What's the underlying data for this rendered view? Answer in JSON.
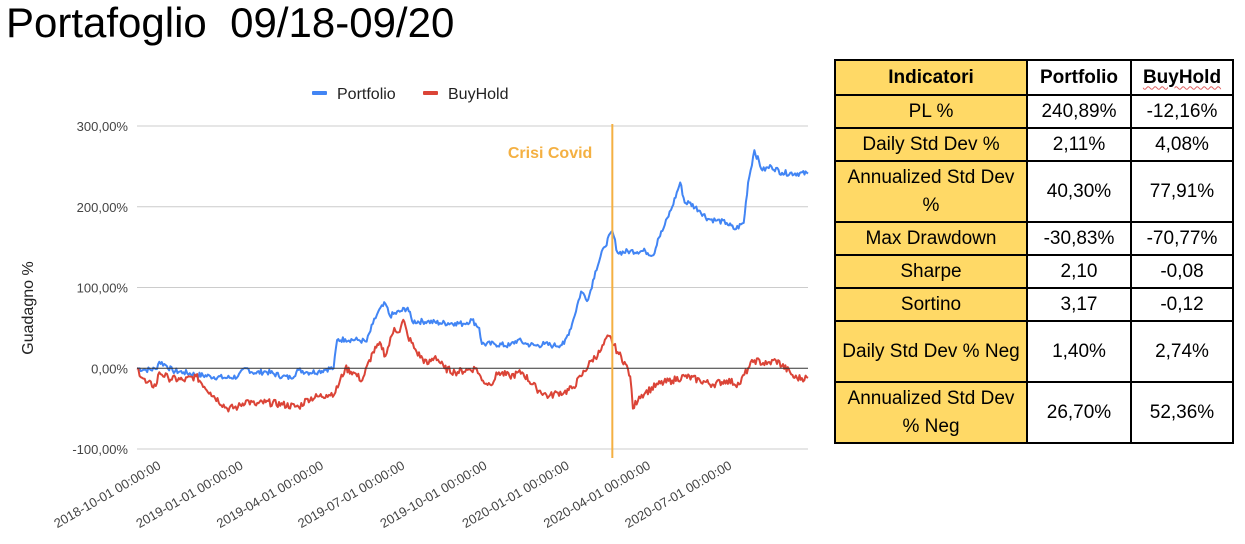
{
  "page": {
    "title": "Portafoglio  09/18-09/20"
  },
  "chart_data": {
    "type": "line",
    "title": "",
    "xlabel": "",
    "ylabel": "Guadagno %",
    "ylim": [
      -100,
      300
    ],
    "y_ticks": [
      -100,
      0,
      100,
      200,
      300
    ],
    "y_tick_labels": [
      "-100,00%",
      "0,00%",
      "100,00%",
      "200,00%",
      "300,00%"
    ],
    "x_range": [
      "2018-09-10",
      "2020-09-30"
    ],
    "x_ticks": [
      "2018-10-01",
      "2019-01-01",
      "2019-04-01",
      "2019-07-01",
      "2019-10-01",
      "2020-01-01",
      "2020-04-01",
      "2020-07-01"
    ],
    "x_tick_labels": [
      "2018-10-01 00:00:00",
      "2019-01-01 00:00:00",
      "2019-04-01 00:00:00",
      "2019-07-01 00:00:00",
      "2019-10-01 00:00:00",
      "2020-01-01 00:00:00",
      "2020-04-01 00:00:00",
      "2020-07-01 00:00:00"
    ],
    "legend_position": "top",
    "grid": true,
    "annotation": {
      "label": "Crisi Covid",
      "x": "2020-02-24",
      "color": "#f4b042"
    },
    "series": [
      {
        "name": "Portfolio",
        "color": "#4285f4",
        "points": [
          [
            "2018-09-10",
            0
          ],
          [
            "2018-09-20",
            -2
          ],
          [
            "2018-10-01",
            -1
          ],
          [
            "2018-10-05",
            8
          ],
          [
            "2018-10-12",
            4
          ],
          [
            "2018-10-20",
            -3
          ],
          [
            "2018-11-01",
            -5
          ],
          [
            "2018-11-15",
            -8
          ],
          [
            "2018-12-01",
            -10
          ],
          [
            "2018-12-20",
            -12
          ],
          [
            "2019-01-01",
            -10
          ],
          [
            "2019-01-10",
            0
          ],
          [
            "2019-01-20",
            -6
          ],
          [
            "2019-02-01",
            -4
          ],
          [
            "2019-02-20",
            -10
          ],
          [
            "2019-03-01",
            -12
          ],
          [
            "2019-03-10",
            -2
          ],
          [
            "2019-03-20",
            -5
          ],
          [
            "2019-04-01",
            -4
          ],
          [
            "2019-04-10",
            -1
          ],
          [
            "2019-04-18",
            0
          ],
          [
            "2019-04-22",
            35
          ],
          [
            "2019-05-01",
            36
          ],
          [
            "2019-05-15",
            35
          ],
          [
            "2019-05-25",
            33
          ],
          [
            "2019-06-01",
            55
          ],
          [
            "2019-06-07",
            70
          ],
          [
            "2019-06-15",
            80
          ],
          [
            "2019-06-20",
            65
          ],
          [
            "2019-07-01",
            70
          ],
          [
            "2019-07-10",
            75
          ],
          [
            "2019-07-15",
            58
          ],
          [
            "2019-08-01",
            58
          ],
          [
            "2019-08-15",
            56
          ],
          [
            "2019-09-01",
            56
          ],
          [
            "2019-09-10",
            55
          ],
          [
            "2019-09-20",
            60
          ],
          [
            "2019-09-28",
            50
          ],
          [
            "2019-10-01",
            30
          ],
          [
            "2019-10-15",
            30
          ],
          [
            "2019-11-01",
            28
          ],
          [
            "2019-11-10",
            35
          ],
          [
            "2019-11-20",
            30
          ],
          [
            "2019-12-01",
            28
          ],
          [
            "2019-12-10",
            30
          ],
          [
            "2019-12-20",
            28
          ],
          [
            "2020-01-01",
            30
          ],
          [
            "2020-01-10",
            55
          ],
          [
            "2020-01-20",
            95
          ],
          [
            "2020-01-28",
            85
          ],
          [
            "2020-02-05",
            120
          ],
          [
            "2020-02-15",
            150
          ],
          [
            "2020-02-24",
            170
          ],
          [
            "2020-03-01",
            143
          ],
          [
            "2020-03-15",
            145
          ],
          [
            "2020-04-01",
            145
          ],
          [
            "2020-04-10",
            140
          ],
          [
            "2020-04-15",
            160
          ],
          [
            "2020-04-20",
            170
          ],
          [
            "2020-05-01",
            200
          ],
          [
            "2020-05-10",
            230
          ],
          [
            "2020-05-15",
            205
          ],
          [
            "2020-05-20",
            205
          ],
          [
            "2020-06-01",
            195
          ],
          [
            "2020-06-10",
            185
          ],
          [
            "2020-06-20",
            183
          ],
          [
            "2020-07-01",
            180
          ],
          [
            "2020-07-10",
            172
          ],
          [
            "2020-07-20",
            180
          ],
          [
            "2020-07-25",
            230
          ],
          [
            "2020-08-01",
            270
          ],
          [
            "2020-08-10",
            245
          ],
          [
            "2020-08-20",
            250
          ],
          [
            "2020-09-01",
            242
          ],
          [
            "2020-09-30",
            241
          ]
        ]
      },
      {
        "name": "BuyHold",
        "color": "#db4437",
        "points": [
          [
            "2018-09-10",
            0
          ],
          [
            "2018-09-20",
            -18
          ],
          [
            "2018-10-01",
            -22
          ],
          [
            "2018-10-05",
            -5
          ],
          [
            "2018-10-15",
            -12
          ],
          [
            "2018-11-01",
            -15
          ],
          [
            "2018-11-15",
            -10
          ],
          [
            "2018-12-01",
            -30
          ],
          [
            "2018-12-20",
            -50
          ],
          [
            "2019-01-01",
            -48
          ],
          [
            "2019-01-10",
            -40
          ],
          [
            "2019-01-20",
            -45
          ],
          [
            "2019-02-01",
            -42
          ],
          [
            "2019-02-20",
            -45
          ],
          [
            "2019-03-10",
            -48
          ],
          [
            "2019-03-20",
            -38
          ],
          [
            "2019-04-01",
            -35
          ],
          [
            "2019-04-10",
            -33
          ],
          [
            "2019-04-20",
            -30
          ],
          [
            "2019-05-01",
            0
          ],
          [
            "2019-05-10",
            -5
          ],
          [
            "2019-05-20",
            -15
          ],
          [
            "2019-06-01",
            20
          ],
          [
            "2019-06-10",
            30
          ],
          [
            "2019-06-15",
            15
          ],
          [
            "2019-06-25",
            50
          ],
          [
            "2019-07-01",
            45
          ],
          [
            "2019-07-05",
            60
          ],
          [
            "2019-07-10",
            40
          ],
          [
            "2019-07-20",
            20
          ],
          [
            "2019-08-01",
            5
          ],
          [
            "2019-08-10",
            15
          ],
          [
            "2019-08-20",
            0
          ],
          [
            "2019-09-01",
            -5
          ],
          [
            "2019-09-15",
            -2
          ],
          [
            "2019-09-25",
            0
          ],
          [
            "2019-10-01",
            -15
          ],
          [
            "2019-10-10",
            -20
          ],
          [
            "2019-10-20",
            -5
          ],
          [
            "2019-11-01",
            -10
          ],
          [
            "2019-11-15",
            -5
          ],
          [
            "2019-12-01",
            -25
          ],
          [
            "2019-12-15",
            -35
          ],
          [
            "2019-12-25",
            -30
          ],
          [
            "2020-01-01",
            -30
          ],
          [
            "2020-01-10",
            -25
          ],
          [
            "2020-01-20",
            -10
          ],
          [
            "2020-02-01",
            10
          ],
          [
            "2020-02-10",
            20
          ],
          [
            "2020-02-20",
            40
          ],
          [
            "2020-03-01",
            20
          ],
          [
            "2020-03-10",
            5
          ],
          [
            "2020-03-15",
            -10
          ],
          [
            "2020-03-18",
            -50
          ],
          [
            "2020-03-25",
            -35
          ],
          [
            "2020-04-01",
            -30
          ],
          [
            "2020-04-15",
            -20
          ],
          [
            "2020-05-01",
            -15
          ],
          [
            "2020-05-15",
            -10
          ],
          [
            "2020-06-01",
            -15
          ],
          [
            "2020-06-15",
            -20
          ],
          [
            "2020-07-01",
            -15
          ],
          [
            "2020-07-15",
            -20
          ],
          [
            "2020-07-25",
            0
          ],
          [
            "2020-08-01",
            10
          ],
          [
            "2020-08-15",
            5
          ],
          [
            "2020-08-25",
            10
          ],
          [
            "2020-09-10",
            -5
          ],
          [
            "2020-09-15",
            -12
          ],
          [
            "2020-09-30",
            -12
          ]
        ]
      }
    ]
  },
  "table": {
    "headers": [
      "Indicatori",
      "Portfolio",
      "BuyHold"
    ],
    "rows": [
      {
        "label": "PL %",
        "portfolio": "240,89%",
        "buyhold": "-12,16%"
      },
      {
        "label": "Daily Std Dev %",
        "portfolio": "2,11%",
        "buyhold": "4,08%"
      },
      {
        "label": "Annualized Std Dev %",
        "portfolio": "40,30%",
        "buyhold": "77,91%"
      },
      {
        "label": "Max Drawdown",
        "portfolio": "-30,83%",
        "buyhold": "-70,77%"
      },
      {
        "label": "Sharpe",
        "portfolio": "2,10",
        "buyhold": "-0,08"
      },
      {
        "label": "Sortino",
        "portfolio": "3,17",
        "buyhold": "-0,12"
      },
      {
        "label": "Daily Std Dev % Neg",
        "portfolio": "1,40%",
        "buyhold": "2,74%"
      },
      {
        "label": "Annualized Std Dev % Neg",
        "portfolio": "26,70%",
        "buyhold": "52,36%"
      }
    ]
  }
}
